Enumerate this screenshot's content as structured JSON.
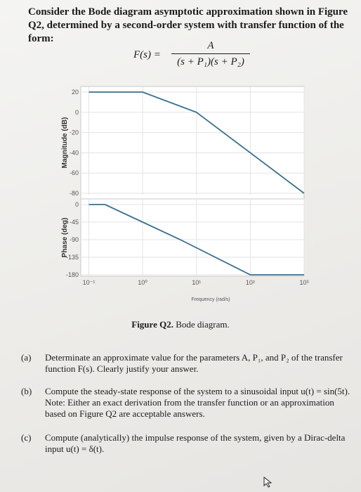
{
  "heading": "Consider the Bode diagram asymptotic approximation shown in Figure Q2, determined by a second-order system with transfer function of the form:",
  "formula": {
    "lhs": "F(s) =",
    "numerator": "A",
    "denominator": "(s + P₁)(s + P₂)"
  },
  "chart_data": [
    {
      "type": "line",
      "xscale": "log",
      "x_ticks": [
        "10⁻¹",
        "10⁰",
        "10¹",
        "10²",
        "10³"
      ],
      "xlabel": "Frequency (rad/s)",
      "ylabel": "Magnitude (dB)",
      "ylim": [
        -80,
        20
      ],
      "y_ticks": [
        "20",
        "0",
        "-20",
        "-40",
        "-60",
        "-80"
      ],
      "grid": true,
      "series": [
        {
          "x": [
            0.1,
            1,
            10,
            1000
          ],
          "y": [
            20,
            20,
            0,
            -80
          ]
        }
      ]
    },
    {
      "type": "line",
      "xscale": "log",
      "x_ticks": [
        "10⁻¹",
        "10⁰",
        "10¹",
        "10²",
        "10³"
      ],
      "xlabel": "Frequency (rad/s)",
      "ylabel": "Phase (deg)",
      "ylim": [
        -180,
        0
      ],
      "y_ticks": [
        "0",
        "-45",
        "-90",
        "-135",
        "-180"
      ],
      "grid": true,
      "series": [
        {
          "x": [
            0.1,
            0.2,
            1,
            5,
            100,
            1000
          ],
          "y": [
            0,
            0,
            -45,
            -90,
            -180,
            -180
          ]
        }
      ]
    }
  ],
  "figure_caption": {
    "label": "Figure Q2.",
    "text": "Bode diagram."
  },
  "questions": [
    {
      "label": "(a)",
      "text": "Determinate an approximate value for the parameters A, P₁, and P₂ of the transfer function F(s). Clearly justify your answer."
    },
    {
      "label": "(b)",
      "text": "Compute the steady-state response of the system to a sinusoidal input u(t) = sin(5t). Note: Either an exact derivation from the transfer function or an approximation based on Figure Q2 are acceptable answers."
    },
    {
      "label": "(c)",
      "text": "Compute (analytically) the impulse response of the system, given by a Dirac-delta input u(t) = δ(t)."
    }
  ]
}
